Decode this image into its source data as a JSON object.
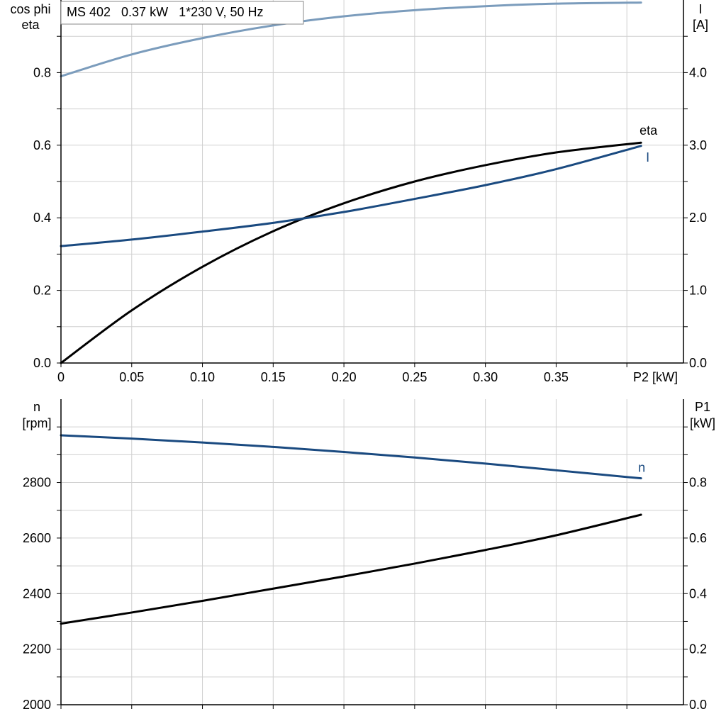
{
  "header": {
    "title": "MS 402   0.37 kW   1*230 V, 50 Hz"
  },
  "colors": {
    "cosphi": "#7b9cbc",
    "current": "#1a4a80",
    "eta": "#000000",
    "speed": "#1a4a80",
    "p1": "#000000"
  },
  "chart_data": [
    {
      "type": "line",
      "title": "MS 402   0.37 kW   1*230 V, 50 Hz",
      "xlabel": "P2 [kW]",
      "xlim": [
        0,
        0.44
      ],
      "xticks": [
        0,
        0.05,
        0.1,
        0.15,
        0.2,
        0.25,
        0.3,
        0.35
      ],
      "xtick_labels": [
        "0",
        "0.05",
        "0.10",
        "0.15",
        "0.20",
        "0.25",
        "0.30",
        "0.35"
      ],
      "ylabel_left": [
        "cos phi",
        "eta"
      ],
      "ylim_left": [
        0,
        1.0
      ],
      "yticks_left": [
        0.0,
        0.2,
        0.4,
        0.6,
        0.8
      ],
      "ytick_labels_left": [
        "0.0",
        "0.2",
        "0.4",
        "0.6",
        "0.8"
      ],
      "ylabel_right": [
        "I",
        "[A]"
      ],
      "ylim_right": [
        0,
        5.0
      ],
      "yticks_right": [
        0.0,
        1.0,
        2.0,
        3.0,
        4.0
      ],
      "ytick_labels_right": [
        "0.0",
        "1.0",
        "2.0",
        "3.0",
        "4.0"
      ],
      "grid": true,
      "series": [
        {
          "name": "cos phi",
          "axis": "left",
          "color": "#7b9cbc",
          "x": [
            0,
            0.05,
            0.1,
            0.15,
            0.2,
            0.25,
            0.3,
            0.35,
            0.41
          ],
          "y": [
            0.79,
            0.85,
            0.895,
            0.93,
            0.955,
            0.972,
            0.983,
            0.99,
            0.993
          ]
        },
        {
          "name": "eta",
          "axis": "left",
          "color": "#000000",
          "x": [
            0,
            0.05,
            0.1,
            0.15,
            0.2,
            0.25,
            0.3,
            0.35,
            0.41
          ],
          "y": [
            0.0,
            0.145,
            0.265,
            0.363,
            0.44,
            0.5,
            0.545,
            0.58,
            0.607
          ]
        },
        {
          "name": "I",
          "axis": "right",
          "color": "#1a4a80",
          "x": [
            0,
            0.05,
            0.1,
            0.15,
            0.2,
            0.25,
            0.3,
            0.35,
            0.41
          ],
          "y": [
            1.61,
            1.7,
            1.81,
            1.93,
            2.08,
            2.26,
            2.45,
            2.67,
            2.99
          ]
        }
      ]
    },
    {
      "type": "line",
      "xlim": [
        0,
        0.44
      ],
      "xticks": [
        0,
        0.05,
        0.1,
        0.15,
        0.2,
        0.25,
        0.3,
        0.35
      ],
      "ylabel_left": [
        "n",
        "[rpm]"
      ],
      "ylim_left": [
        2000,
        3100
      ],
      "yticks_left": [
        2000,
        2200,
        2400,
        2600,
        2800
      ],
      "ytick_labels_left": [
        "2000",
        "2200",
        "2400",
        "2600",
        "2800"
      ],
      "ylabel_right": [
        "P1",
        "[kW]"
      ],
      "ylim_right": [
        0,
        1.1
      ],
      "yticks_right": [
        0.0,
        0.2,
        0.4,
        0.6,
        0.8
      ],
      "ytick_labels_right": [
        "0.0",
        "0.2",
        "0.4",
        "0.6",
        "0.8"
      ],
      "grid": true,
      "series": [
        {
          "name": "n",
          "axis": "left",
          "color": "#1a4a80",
          "x": [
            0,
            0.05,
            0.1,
            0.15,
            0.2,
            0.25,
            0.3,
            0.35,
            0.41
          ],
          "y": [
            2970,
            2958,
            2944,
            2928,
            2910,
            2890,
            2868,
            2844,
            2815
          ]
        },
        {
          "name": "",
          "axis": "right",
          "color": "#000000",
          "x": [
            0,
            0.05,
            0.1,
            0.15,
            0.2,
            0.25,
            0.3,
            0.35,
            0.41
          ],
          "y": [
            0.292,
            0.332,
            0.374,
            0.418,
            0.462,
            0.508,
            0.557,
            0.61,
            0.684
          ]
        }
      ]
    }
  ]
}
